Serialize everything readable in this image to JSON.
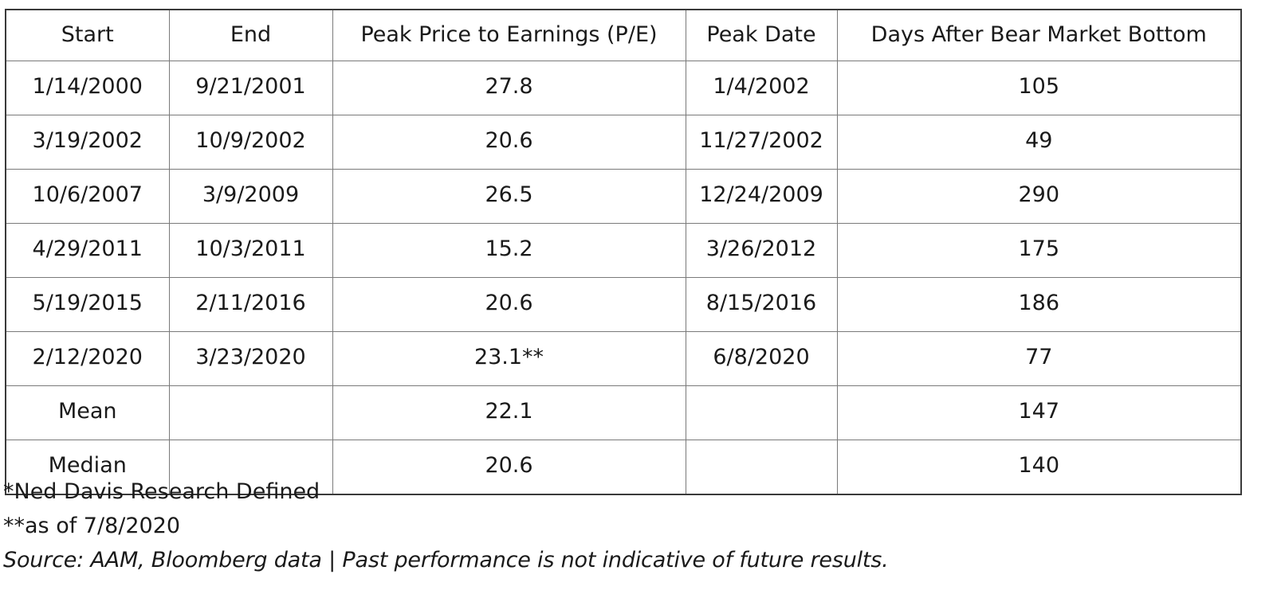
{
  "table": {
    "headers": [
      "Start",
      "End",
      "Peak Price to Earnings (P/E)",
      "Peak Date",
      "Days After Bear Market Bottom"
    ],
    "rows": [
      [
        "1/14/2000",
        "9/21/2001",
        "27.8",
        "1/4/2002",
        "105"
      ],
      [
        "3/19/2002",
        "10/9/2002",
        "20.6",
        "11/27/2002",
        "49"
      ],
      [
        "10/6/2007",
        "3/9/2009",
        "26.5",
        "12/24/2009",
        "290"
      ],
      [
        "4/29/2011",
        "10/3/2011",
        "15.2",
        "3/26/2012",
        "175"
      ],
      [
        "5/19/2015",
        "2/11/2016",
        "20.6",
        "8/15/2016",
        "186"
      ],
      [
        "2/12/2020",
        "3/23/2020",
        "23.1**",
        "6/8/2020",
        "77"
      ],
      [
        "Mean",
        "",
        "22.1",
        "",
        "147"
      ],
      [
        "Median",
        "",
        "20.6",
        "",
        "140"
      ]
    ]
  },
  "notes": {
    "footnote_1": "*Ned Davis Research Defined",
    "footnote_2": "**as of 7/8/2020",
    "source": "Source: AAM, Bloomberg data | Past performance is not indicative of future results."
  }
}
